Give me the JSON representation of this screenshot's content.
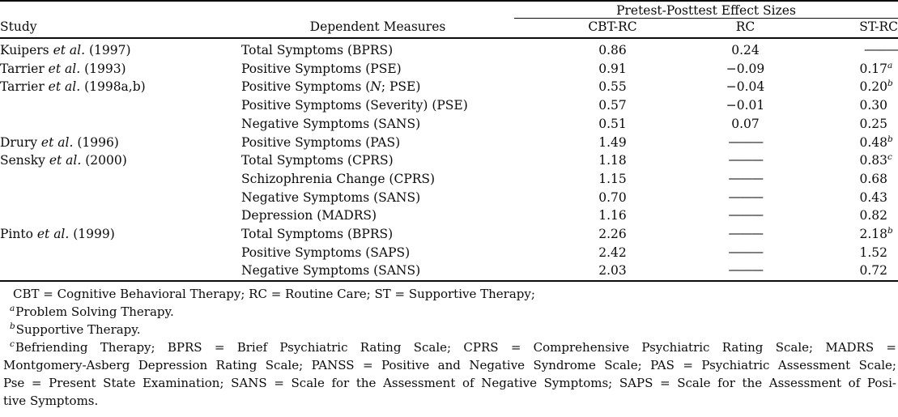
{
  "table": {
    "spanner": "Pretest-Posttest Effect Sizes",
    "columns": {
      "study": "Study",
      "measures": "Dependent Measures",
      "effects": [
        "CBT-RC",
        "RC",
        "ST-RC"
      ]
    },
    "rows": [
      [
        "Kuipers *et al.* (1997)",
        "Total Symptoms (BPRS)",
        "0.86",
        "0.24",
        "———"
      ],
      [
        "Tarrier *et al.* (1993)",
        "Positive Symptoms (PSE)",
        "0.91",
        "−0.09",
        "0.17^a"
      ],
      [
        "Tarrier *et al.* (1998a,b)",
        "Positive Symptoms (*N*; PSE)",
        "0.55",
        "−0.04",
        "0.20^b"
      ],
      [
        "",
        "Positive Symptoms (Severity) (PSE)",
        "0.57",
        "−0.01",
        "0.30"
      ],
      [
        "",
        "Negative Symptoms (SANS)",
        "0.51",
        "0.07",
        "0.25"
      ],
      [
        "Drury *et al.* (1996)",
        "Positive Symptoms (PAS)",
        "1.49",
        "———",
        "0.48^b"
      ],
      [
        "Sensky *et al.* (2000)",
        "Total Symptoms (CPRS)",
        "1.18",
        "———",
        "0.83^c"
      ],
      [
        "",
        "Schizophrenia Change (CPRS)",
        "1.15",
        "———",
        "0.68"
      ],
      [
        "",
        "Negative Symptoms (SANS)",
        "0.70",
        "———",
        "0.43"
      ],
      [
        "",
        "Depression (MADRS)",
        "1.16",
        "———",
        "0.82"
      ],
      [
        "Pinto *et al.* (1999)",
        "Total Symptoms (BPRS)",
        "2.26",
        "———",
        "2.18^b"
      ],
      [
        "",
        "Positive Symptoms (SAPS)",
        "2.42",
        "———",
        "1.52"
      ],
      [
        "",
        "Negative Symptoms (SANS)",
        "2.03",
        "———",
        "0.72"
      ]
    ]
  },
  "footnotes": {
    "general": "CBT = Cognitive Behavioral Therapy; RC = Routine Care; ST = Supportive Therapy;",
    "items": [
      {
        "mark": "a",
        "text": "Problem Solving Therapy."
      },
      {
        "mark": "b",
        "text": "Supportive Therapy."
      }
    ],
    "c": {
      "mark": "c",
      "lines": [
        "Befriending Therapy; BPRS = Brief Psychiatric Rating Scale; CPRS = Comprehensive Psychiatric Rating Scale; MADRS =",
        "Montgomery-Asberg Depression Rating Scale; PANSS = Positive and Negative Syndrome Scale; PAS = Psychiatric Assessment Scale;",
        "Pse = Present State Examination; SANS = Scale for the Assessment of Negative Symptoms; SAPS = Scale for the Assessment of Posi-",
        "tive Symptoms."
      ]
    }
  }
}
